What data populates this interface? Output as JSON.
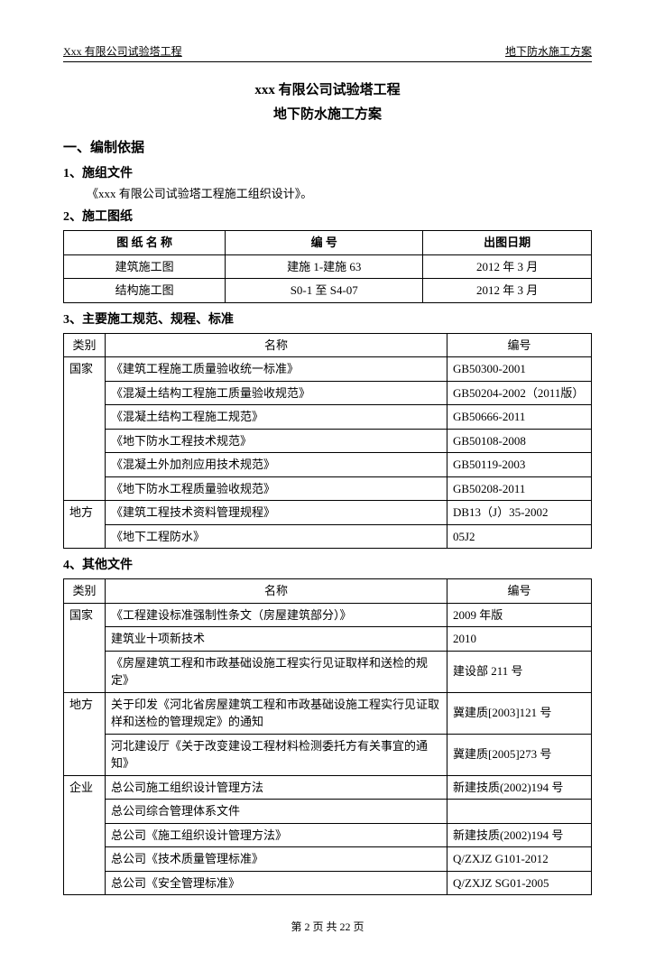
{
  "header": {
    "left": "Xxx 有限公司试验塔工程",
    "right": "地下防水施工方案"
  },
  "title1": "xxx 有限公司试验塔工程",
  "title2": "地下防水施工方案",
  "sec1": "一、编制依据",
  "sec1_1": "1、施组文件",
  "sec1_1_text": "《xxx 有限公司试验塔工程施工组织设计》。",
  "sec1_2": "2、施工图纸",
  "t1": {
    "h1": "图 纸 名 称",
    "h2": "编  号",
    "h3": "出图日期",
    "r1c1": "建筑施工图",
    "r1c2": "建施 1-建施 63",
    "r1c3": "2012 年 3 月",
    "r2c1": "结构施工图",
    "r2c2": "S0-1 至 S4-07",
    "r2c3": "2012 年 3 月"
  },
  "sec1_3": "3、主要施工规范、规程、标准",
  "t2": {
    "h1": "类别",
    "h2": "名称",
    "h3": "编号",
    "cat1": "国家",
    "r1n": "《建筑工程施工质量验收统一标准》",
    "r1c": "GB50300-2001",
    "r2n": "《混凝土结构工程施工质量验收规范》",
    "r2c": "GB50204-2002（2011版）",
    "r3n": "《混凝土结构工程施工规范》",
    "r3c": "GB50666-2011",
    "r4n": "《地下防水工程技术规范》",
    "r4c": "GB50108-2008",
    "r5n": "《混凝土外加剂应用技术规范》",
    "r5c": "GB50119-2003",
    "r6n": "《地下防水工程质量验收规范》",
    "r6c": "GB50208-2011",
    "cat2": "地方",
    "r7n": "《建筑工程技术资料管理规程》",
    "r7c": "DB13（J）35-2002",
    "r8n": "《地下工程防水》",
    "r8c": "05J2"
  },
  "sec1_4": "4、其他文件",
  "t3": {
    "h1": "类别",
    "h2": "名称",
    "h3": "编号",
    "cat1": "国家",
    "r1n": "《工程建设标准强制性条文（房屋建筑部分）》",
    "r1c": "2009 年版",
    "r2n": "建筑业十项新技术",
    "r2c": "2010",
    "r3n": "《房屋建筑工程和市政基础设施工程实行见证取样和送检的规定》",
    "r3c": "建设部 211 号",
    "cat2": "地方",
    "r4n": "关于印发《河北省房屋建筑工程和市政基础设施工程实行见证取样和送检的管理规定》的通知",
    "r4c": "冀建质[2003]121 号",
    "r5n": "河北建设厅《关于改变建设工程材料检测委托方有关事宜的通知》",
    "r5c": "冀建质[2005]273 号",
    "cat3": "企业",
    "r6n": "总公司施工组织设计管理方法",
    "r6c": "新建技质(2002)194 号",
    "r7n": "总公司综合管理体系文件",
    "r7c": "",
    "r8n": "总公司《施工组织设计管理方法》",
    "r8c": "新建技质(2002)194 号",
    "r9n": "总公司《技术质量管理标准》",
    "r9c": "Q/ZXJZ G101-2012",
    "r10n": "总公司《安全管理标准》",
    "r10c": "Q/ZXJZ SG01-2005"
  },
  "footer": "第 2 页 共 22 页"
}
